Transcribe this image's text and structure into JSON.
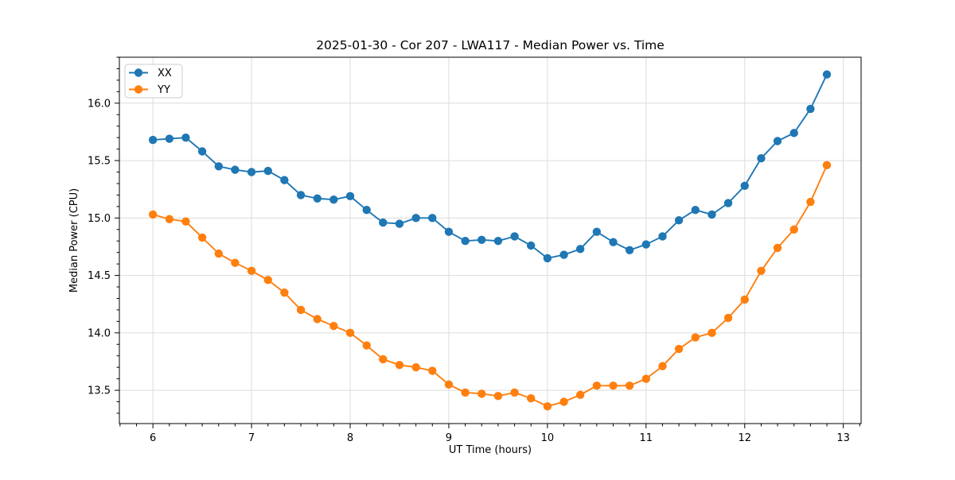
{
  "chart_data": {
    "type": "line",
    "title": "2025-01-30 - Cor 207 - LWA117 - Median Power vs. Time",
    "xlabel": "UT Time (hours)",
    "ylabel": "Median Power (CPU)",
    "xlim": [
      5.66,
      13.18
    ],
    "ylim": [
      13.21,
      16.4
    ],
    "xticks": [
      6,
      7,
      8,
      9,
      10,
      11,
      12,
      13
    ],
    "yticks": [
      13.5,
      14.0,
      14.5,
      15.0,
      15.5,
      16.0
    ],
    "x_minor_step_per_hour": 6,
    "y_minor_step": 0.1,
    "grid": true,
    "legend_position": "upper left",
    "colors": {
      "grid": "#dcdcdc",
      "axes": "#000000",
      "legend_border": "#cccccc",
      "background": "#ffffff"
    },
    "x": [
      6.0,
      6.167,
      6.333,
      6.5,
      6.667,
      6.833,
      7.0,
      7.167,
      7.333,
      7.5,
      7.667,
      7.833,
      8.0,
      8.167,
      8.333,
      8.5,
      8.667,
      8.833,
      9.0,
      9.167,
      9.333,
      9.5,
      9.667,
      9.833,
      10.0,
      10.167,
      10.333,
      10.5,
      10.667,
      10.833,
      11.0,
      11.167,
      11.333,
      11.5,
      11.667,
      11.833,
      12.0,
      12.167,
      12.333,
      12.5,
      12.667,
      12.833
    ],
    "series": [
      {
        "name": "XX",
        "color": "#1f77b4",
        "values": [
          15.68,
          15.69,
          15.7,
          15.58,
          15.45,
          15.42,
          15.4,
          15.41,
          15.33,
          15.2,
          15.17,
          15.16,
          15.19,
          15.07,
          14.96,
          14.95,
          15.0,
          15.0,
          14.88,
          14.8,
          14.81,
          14.8,
          14.84,
          14.76,
          14.65,
          14.68,
          14.73,
          14.88,
          14.79,
          14.72,
          14.77,
          14.84,
          14.98,
          15.07,
          15.03,
          15.13,
          15.28,
          15.52,
          15.67,
          15.74,
          15.95,
          16.25
        ]
      },
      {
        "name": "YY",
        "color": "#ff7f0e",
        "values": [
          15.03,
          14.99,
          14.97,
          14.83,
          14.69,
          14.61,
          14.54,
          14.46,
          14.35,
          14.2,
          14.12,
          14.06,
          14.0,
          13.89,
          13.77,
          13.72,
          13.7,
          13.67,
          13.55,
          13.48,
          13.47,
          13.45,
          13.48,
          13.43,
          13.36,
          13.4,
          13.46,
          13.54,
          13.54,
          13.54,
          13.6,
          13.71,
          13.86,
          13.96,
          14.0,
          14.13,
          14.29,
          14.54,
          14.74,
          14.9,
          15.14,
          15.46
        ]
      }
    ]
  }
}
